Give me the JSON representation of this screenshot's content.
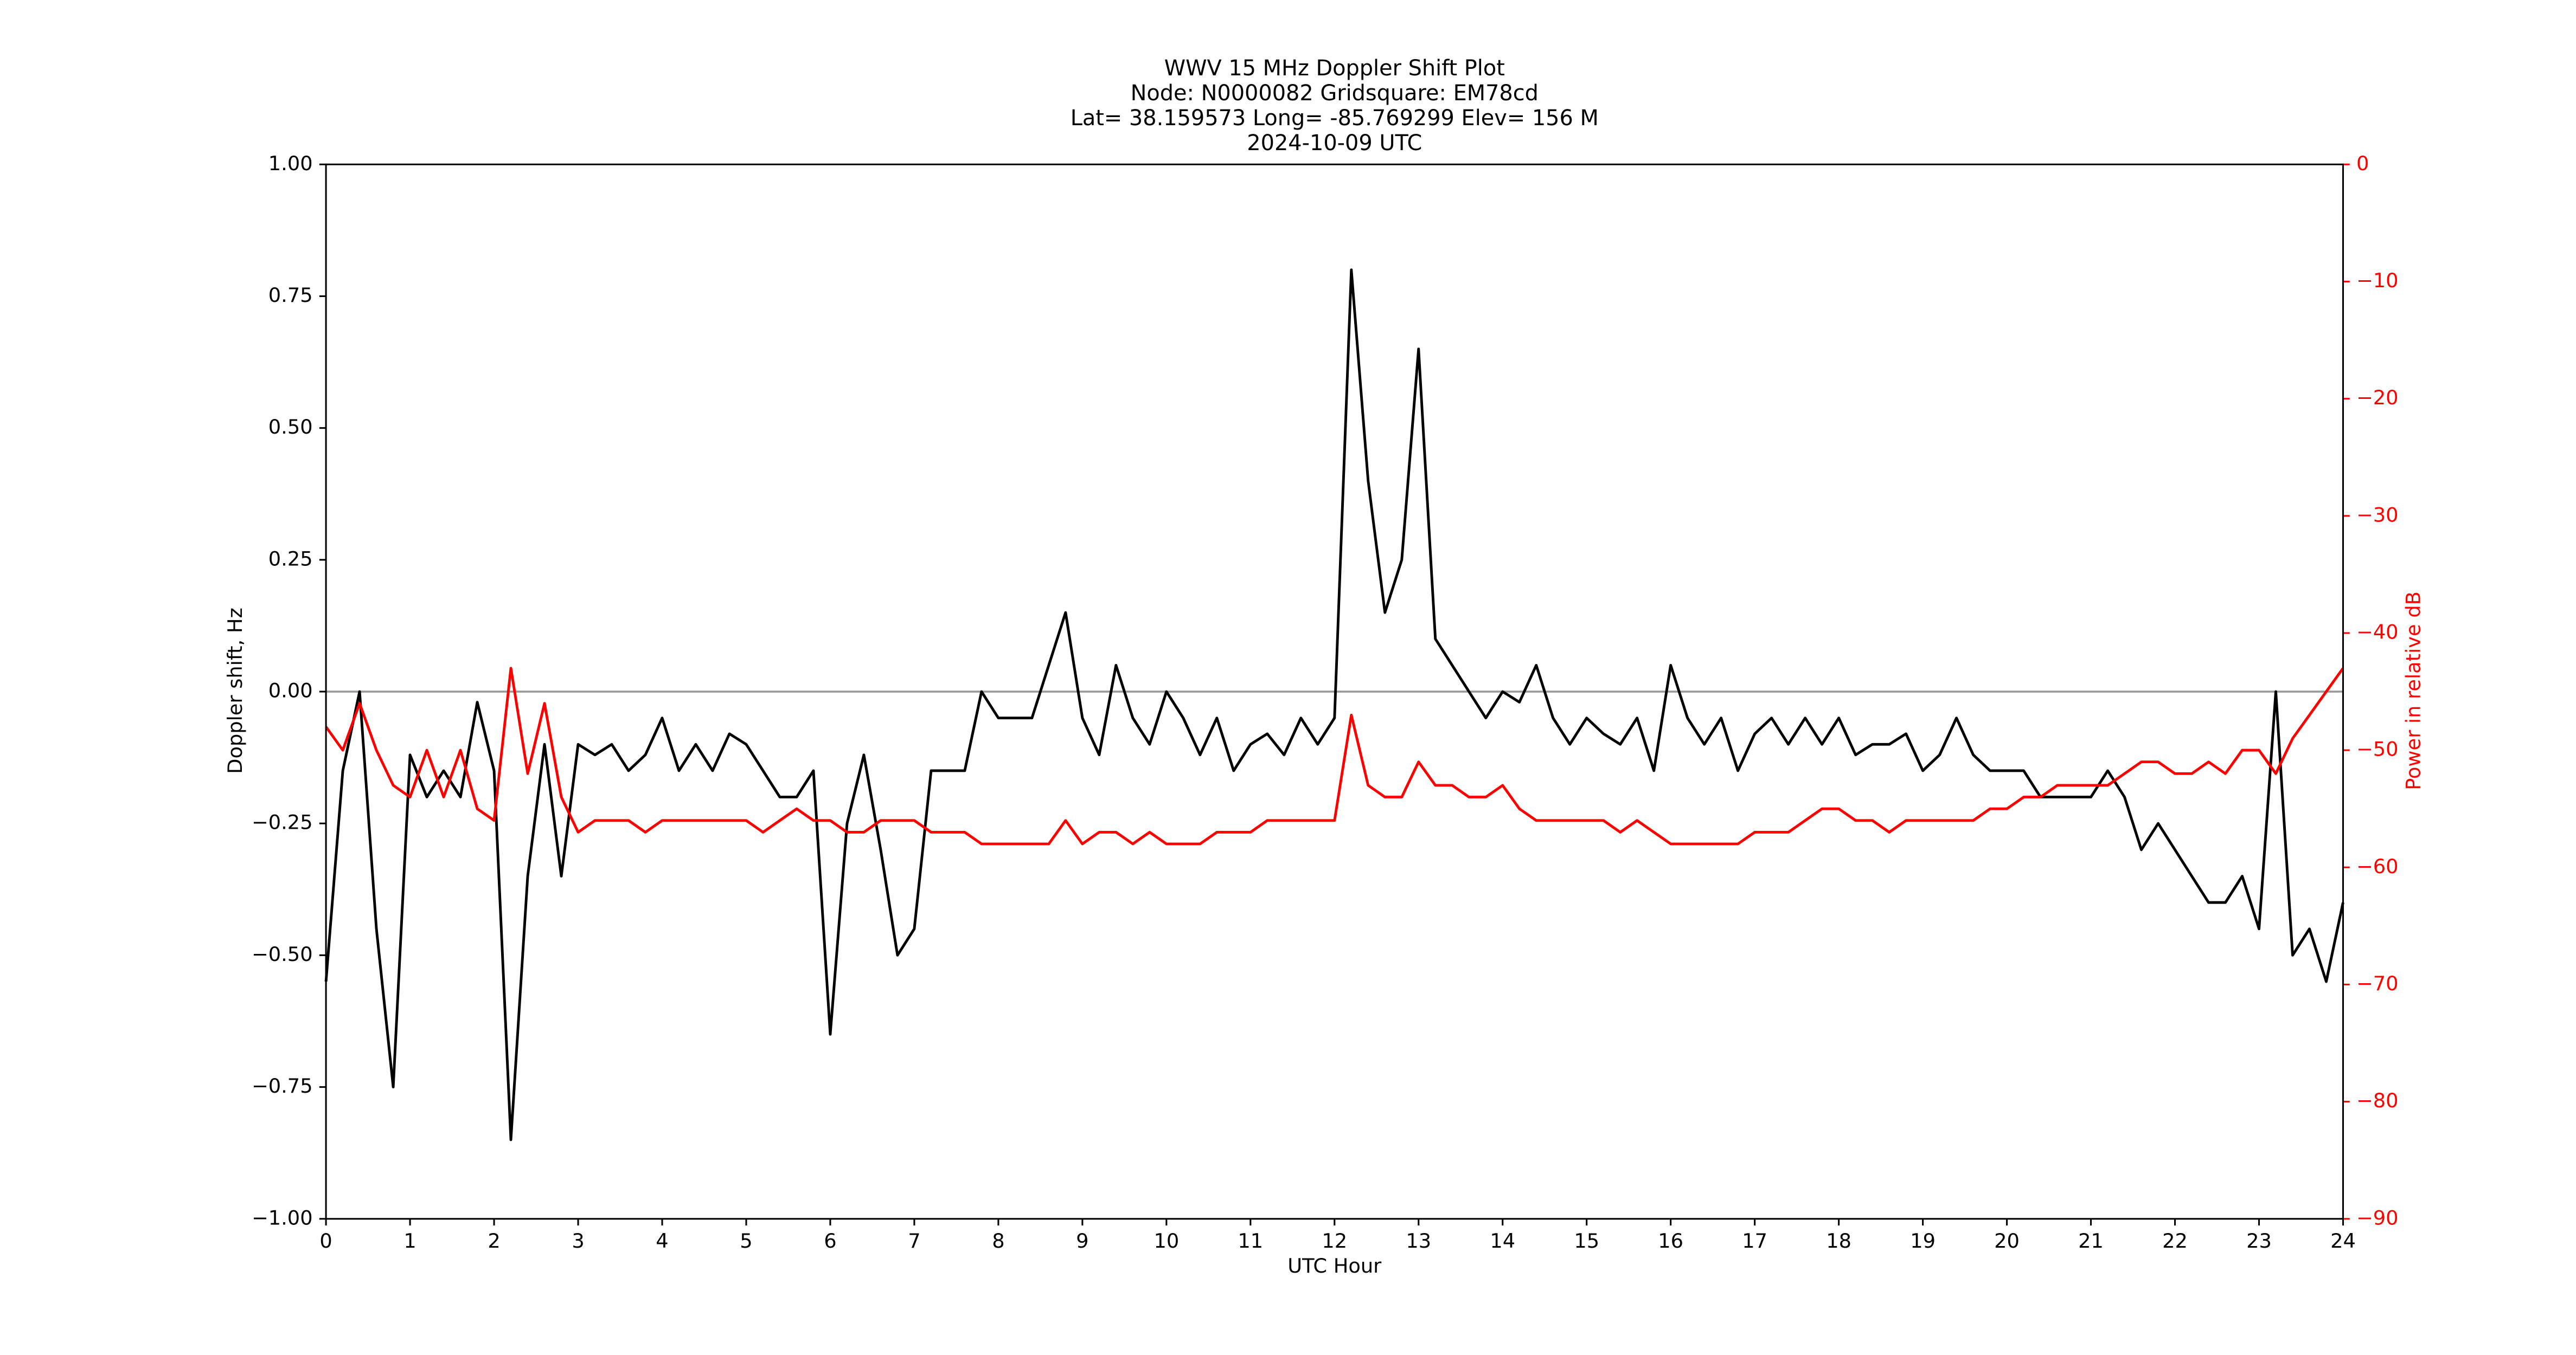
{
  "chart_data": {
    "type": "line",
    "title_lines": [
      "WWV 15 MHz Doppler Shift Plot",
      "Node:  N0000082     Gridsquare:  EM78cd",
      "Lat= 38.159573    Long= -85.769299    Elev= 156 M",
      "2024-10-09  UTC"
    ],
    "x_label": "UTC Hour",
    "y_label": "Doppler shift, Hz",
    "y2_label": "Power in relative dB",
    "xlim": [
      0,
      24
    ],
    "xticks": [
      0,
      1,
      2,
      3,
      4,
      5,
      6,
      7,
      8,
      9,
      10,
      11,
      12,
      13,
      14,
      15,
      16,
      17,
      18,
      19,
      20,
      21,
      22,
      23,
      24
    ],
    "ylim": [
      -1,
      1
    ],
    "yticks": [
      {
        "value": -1,
        "label": "−1.00"
      },
      {
        "value": -0.75,
        "label": "−0.75"
      },
      {
        "value": -0.5,
        "label": "−0.50"
      },
      {
        "value": -0.25,
        "label": "−0.25"
      },
      {
        "value": 0,
        "label": "0.00"
      },
      {
        "value": 0.25,
        "label": "0.25"
      },
      {
        "value": 0.5,
        "label": "0.50"
      },
      {
        "value": 0.75,
        "label": "0.75"
      },
      {
        "value": 1,
        "label": "1.00"
      }
    ],
    "y2lim": [
      -90,
      0
    ],
    "y2ticks": [
      {
        "value": -90,
        "label": "−90"
      },
      {
        "value": -80,
        "label": "−80"
      },
      {
        "value": -70,
        "label": "−70"
      },
      {
        "value": -60,
        "label": "−60"
      },
      {
        "value": -50,
        "label": "−50"
      },
      {
        "value": -40,
        "label": "−40"
      },
      {
        "value": -30,
        "label": "−30"
      },
      {
        "value": -20,
        "label": "−20"
      },
      {
        "value": -10,
        "label": "−10"
      },
      0
    ],
    "y2_color": "#ff0000",
    "x": [
      0,
      0.2,
      0.4,
      0.6,
      0.8,
      1,
      1.2,
      1.4,
      1.6,
      1.8,
      2,
      2.2,
      2.4,
      2.6,
      2.8,
      3,
      3.2,
      3.4,
      3.6,
      3.8,
      4,
      4.2,
      4.4,
      4.6,
      4.8,
      5,
      5.2,
      5.4,
      5.6,
      5.8,
      6,
      6.2,
      6.4,
      6.6,
      6.8,
      7,
      7.2,
      7.4,
      7.6,
      7.8,
      8,
      8.2,
      8.4,
      8.6,
      8.8,
      9,
      9.2,
      9.4,
      9.6,
      9.8,
      10,
      10.2,
      10.4,
      10.6,
      10.8,
      11,
      11.2,
      11.4,
      11.6,
      11.8,
      12,
      12.2,
      12.4,
      12.6,
      12.8,
      13,
      13.2,
      13.4,
      13.6,
      13.8,
      14,
      14.2,
      14.4,
      14.6,
      14.8,
      15,
      15.2,
      15.4,
      15.6,
      15.8,
      16,
      16.2,
      16.4,
      16.6,
      16.8,
      17,
      17.2,
      17.4,
      17.6,
      17.8,
      18,
      18.2,
      18.4,
      18.6,
      18.8,
      19,
      19.2,
      19.4,
      19.6,
      19.8,
      20,
      20.2,
      20.4,
      20.6,
      20.8,
      21,
      21.2,
      21.4,
      21.6,
      21.8,
      22,
      22.2,
      22.4,
      22.6,
      22.8,
      23,
      23.2,
      23.4,
      23.6,
      23.8,
      24
    ],
    "series": [
      {
        "name": "Doppler shift",
        "color": "#000000",
        "axis": "y",
        "values": [
          -0.55,
          -0.15,
          0,
          -0.45,
          -0.75,
          -0.12,
          -0.2,
          -0.15,
          -0.2,
          -0.02,
          -0.15,
          -0.85,
          -0.35,
          -0.1,
          -0.35,
          -0.1,
          -0.12,
          -0.1,
          -0.15,
          -0.12,
          -0.05,
          -0.15,
          -0.1,
          -0.15,
          -0.08,
          -0.1,
          -0.15,
          -0.2,
          -0.2,
          -0.15,
          -0.65,
          -0.25,
          -0.12,
          -0.3,
          -0.5,
          -0.45,
          -0.15,
          -0.15,
          -0.15,
          0,
          -0.05,
          -0.05,
          -0.05,
          0.05,
          0.15,
          -0.05,
          -0.12,
          0.05,
          -0.05,
          -0.1,
          0,
          -0.05,
          -0.12,
          -0.05,
          -0.15,
          -0.1,
          -0.08,
          -0.12,
          -0.05,
          -0.1,
          -0.05,
          0.8,
          0.4,
          0.15,
          0.25,
          0.65,
          0.1,
          0.05,
          0,
          -0.05,
          0,
          -0.02,
          0.05,
          -0.05,
          -0.1,
          -0.05,
          -0.08,
          -0.1,
          -0.05,
          -0.15,
          0.05,
          -0.05,
          -0.1,
          -0.05,
          -0.15,
          -0.08,
          -0.05,
          -0.1,
          -0.05,
          -0.1,
          -0.05,
          -0.12,
          -0.1,
          -0.1,
          -0.08,
          -0.15,
          -0.12,
          -0.05,
          -0.12,
          -0.15,
          -0.15,
          -0.15,
          -0.2,
          -0.2,
          -0.2,
          -0.2,
          -0.15,
          -0.2,
          -0.3,
          -0.25,
          -0.3,
          -0.35,
          -0.4,
          -0.4,
          -0.35,
          -0.45,
          0,
          -0.5,
          -0.45,
          -0.55,
          -0.4
        ]
      },
      {
        "name": "Power",
        "color": "#ff0000",
        "axis": "y2",
        "values": [
          -48,
          -50,
          -46,
          -50,
          -53,
          -54,
          -50,
          -54,
          -50,
          -55,
          -56,
          -43,
          -52,
          -46,
          -54,
          -57,
          -56,
          -56,
          -56,
          -57,
          -56,
          -56,
          -56,
          -56,
          -56,
          -56,
          -57,
          -56,
          -55,
          -56,
          -56,
          -57,
          -57,
          -56,
          -56,
          -56,
          -57,
          -57,
          -57,
          -58,
          -58,
          -58,
          -58,
          -58,
          -56,
          -58,
          -57,
          -57,
          -58,
          -57,
          -58,
          -58,
          -58,
          -57,
          -57,
          -57,
          -56,
          -56,
          -56,
          -56,
          -56,
          -47,
          -53,
          -54,
          -54,
          -51,
          -53,
          -53,
          -54,
          -54,
          -53,
          -55,
          -56,
          -56,
          -56,
          -56,
          -56,
          -57,
          -56,
          -57,
          -58,
          -58,
          -58,
          -58,
          -58,
          -57,
          -57,
          -57,
          -56,
          -55,
          -55,
          -56,
          -56,
          -57,
          -56,
          -56,
          -56,
          -56,
          -56,
          -55,
          -55,
          -54,
          -54,
          -53,
          -53,
          -53,
          -53,
          -52,
          -51,
          -51,
          -52,
          -52,
          -51,
          -52,
          -50,
          -50,
          -52,
          -49,
          -47,
          -45,
          -43
        ]
      }
    ]
  }
}
